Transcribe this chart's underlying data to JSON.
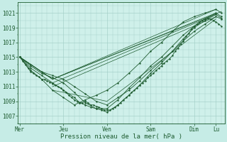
{
  "background_color": "#c6ece6",
  "plot_bg_color": "#cff0ea",
  "grid_color": "#9eccc4",
  "line_color": "#1e5c30",
  "ylabel_values": [
    1007,
    1009,
    1011,
    1013,
    1015,
    1017,
    1019,
    1021
  ],
  "x_ticks": [
    0,
    48,
    96,
    144,
    192,
    216
  ],
  "x_tick_labels": [
    "Mer",
    "Jeu",
    "Ven",
    "Sam",
    "Dim",
    "Lu"
  ],
  "xlabel": "Pression niveau de la mer( hPa )",
  "ylim": [
    1006.0,
    1022.5
  ],
  "xlim": [
    -2,
    226
  ],
  "tick_fontsize": 5.5,
  "label_fontsize": 6.5,
  "series": [
    {
      "x": [
        0,
        3,
        6,
        9,
        12,
        15,
        18,
        21,
        24,
        27,
        30,
        33,
        36,
        39,
        42,
        45,
        48,
        51,
        54,
        57,
        60,
        63,
        66,
        69,
        72,
        75,
        78,
        81,
        84,
        87,
        90,
        93,
        96,
        99,
        102,
        105,
        108,
        111,
        114,
        117,
        120,
        123,
        126,
        129,
        132,
        135,
        138,
        141,
        144,
        147,
        150,
        153,
        156,
        159,
        162,
        165,
        168,
        171,
        174,
        177,
        180,
        183,
        186,
        189,
        192,
        195,
        198,
        201,
        204,
        207,
        210,
        213,
        216,
        219,
        222
      ],
      "y": [
        1015.0,
        1014.5,
        1014.0,
        1013.5,
        1013.0,
        1012.8,
        1012.5,
        1012.3,
        1012.0,
        1012.0,
        1011.8,
        1011.6,
        1011.4,
        1011.2,
        1011.0,
        1010.8,
        1010.5,
        1010.2,
        1009.8,
        1009.5,
        1009.2,
        1009.0,
        1008.8,
        1008.8,
        1009.0,
        1008.8,
        1008.5,
        1008.5,
        1008.3,
        1008.2,
        1008.0,
        1007.8,
        1007.8,
        1007.8,
        1008.0,
        1008.2,
        1008.5,
        1008.8,
        1009.2,
        1009.5,
        1009.8,
        1010.2,
        1010.5,
        1010.8,
        1011.2,
        1011.5,
        1011.8,
        1012.2,
        1012.5,
        1012.8,
        1013.2,
        1013.5,
        1013.8,
        1014.2,
        1014.5,
        1014.8,
        1015.2,
        1015.8,
        1016.2,
        1016.8,
        1017.2,
        1017.8,
        1018.2,
        1018.8,
        1019.2,
        1019.5,
        1019.8,
        1020.0,
        1020.2,
        1020.3,
        1020.2,
        1020.0,
        1019.8,
        1019.5,
        1019.2
      ],
      "marker": true
    },
    {
      "x": [
        0,
        36,
        216
      ],
      "y": [
        1015.0,
        1012.0,
        1021.5
      ],
      "marker": false
    },
    {
      "x": [
        0,
        36,
        216
      ],
      "y": [
        1015.0,
        1012.0,
        1021.0
      ],
      "marker": false
    },
    {
      "x": [
        0,
        36,
        222
      ],
      "y": [
        1015.0,
        1012.0,
        1021.2
      ],
      "marker": false
    },
    {
      "x": [
        36,
        216
      ],
      "y": [
        1011.5,
        1020.8
      ],
      "marker": false
    },
    {
      "x": [
        36,
        216
      ],
      "y": [
        1011.0,
        1020.5
      ],
      "marker": false
    },
    {
      "x": [
        36,
        96,
        216
      ],
      "y": [
        1010.5,
        1009.0,
        1020.2
      ],
      "marker": false
    },
    {
      "x": [
        0,
        12,
        24,
        36,
        48,
        60,
        72,
        84,
        96,
        108,
        120,
        132,
        144,
        156,
        168,
        180,
        192,
        204,
        216,
        222
      ],
      "y": [
        1015.0,
        1014.0,
        1013.0,
        1012.5,
        1012.0,
        1011.0,
        1010.0,
        1009.0,
        1008.5,
        1009.5,
        1010.5,
        1011.8,
        1013.2,
        1014.5,
        1015.8,
        1017.2,
        1018.5,
        1019.5,
        1020.5,
        1020.2
      ],
      "marker": true
    },
    {
      "x": [
        0,
        12,
        24,
        36,
        48,
        60,
        72,
        84,
        96,
        108,
        120,
        132,
        144,
        156,
        168,
        180,
        192,
        204,
        216,
        222
      ],
      "y": [
        1015.0,
        1013.8,
        1012.8,
        1012.2,
        1011.5,
        1010.2,
        1008.8,
        1008.0,
        1008.0,
        1009.2,
        1010.8,
        1012.2,
        1013.8,
        1015.0,
        1016.5,
        1018.0,
        1019.2,
        1020.2,
        1021.0,
        1020.5
      ],
      "marker": true
    },
    {
      "x": [
        0,
        12,
        24,
        36,
        48,
        60,
        66,
        72,
        78,
        84,
        90,
        96,
        108,
        120,
        132,
        144,
        156,
        168,
        180,
        192,
        204,
        216,
        222
      ],
      "y": [
        1015.0,
        1013.5,
        1012.5,
        1011.5,
        1010.5,
        1009.5,
        1008.8,
        1008.5,
        1008.2,
        1008.0,
        1007.8,
        1007.5,
        1008.5,
        1009.8,
        1011.2,
        1012.8,
        1014.2,
        1015.8,
        1017.5,
        1019.0,
        1020.0,
        1020.8,
        1020.3
      ],
      "marker": true
    },
    {
      "x": [
        0,
        12,
        24,
        36,
        48,
        60,
        72,
        84,
        96,
        108,
        120,
        132,
        144,
        156,
        168,
        180,
        192,
        204,
        216,
        222
      ],
      "y": [
        1015.0,
        1013.2,
        1012.0,
        1010.5,
        1009.5,
        1008.5,
        1009.2,
        1009.8,
        1010.5,
        1011.5,
        1012.8,
        1014.2,
        1015.8,
        1017.0,
        1018.5,
        1019.8,
        1020.5,
        1021.0,
        1021.5,
        1021.0
      ],
      "marker": true
    }
  ]
}
